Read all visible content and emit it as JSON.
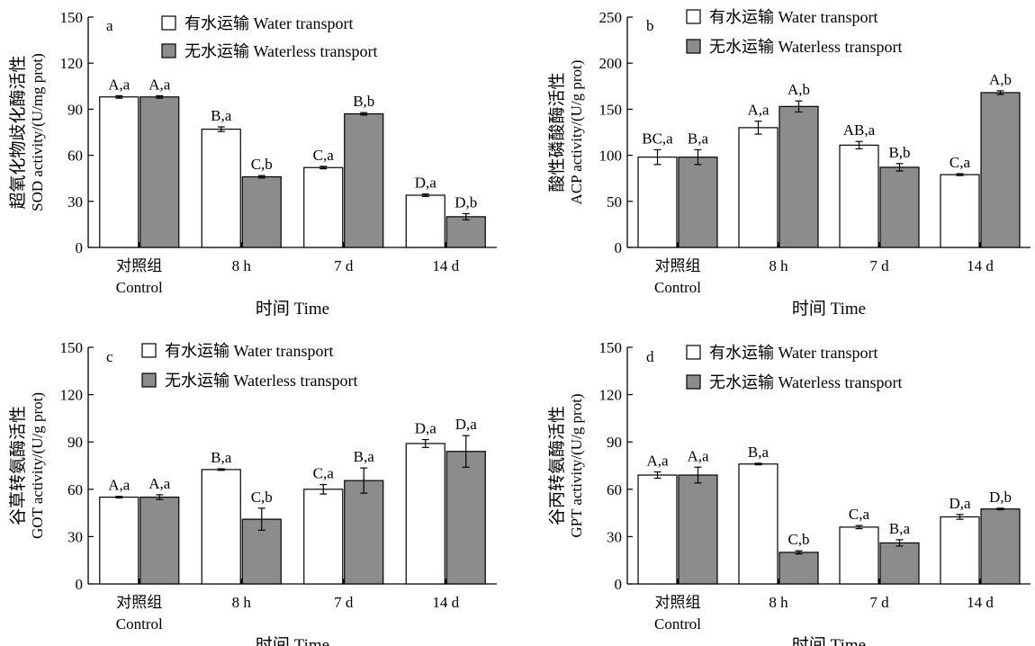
{
  "colors": {
    "water": "#ffffff",
    "waterless": "#8c8c8c",
    "stroke": "#000000"
  },
  "legend": {
    "water": "有水运输 Water transport",
    "waterless": "无水运输 Waterless transport"
  },
  "chart_data": [
    {
      "panel": "a",
      "type": "bar",
      "ylabel_cn": "超氧化物歧化酶活性",
      "ylabel_en": "SOD activity/(U/mg prot)",
      "xlabel": "时间 Time",
      "ylim": [
        0,
        150
      ],
      "yticks": [
        0,
        30,
        60,
        90,
        120,
        150
      ],
      "categories": [
        [
          "对照组",
          "Control"
        ],
        [
          "8 h"
        ],
        [
          "7 d"
        ],
        [
          "14 d"
        ]
      ],
      "series": [
        {
          "name": "有水运输 Water transport",
          "values": [
            98,
            77,
            52,
            34
          ],
          "errors": [
            0.8,
            1.5,
            0.8,
            0.8
          ],
          "labels": [
            "A,a",
            "B,a",
            "C,a",
            "D,a"
          ]
        },
        {
          "name": "无水运输 Waterless transport",
          "values": [
            98,
            46,
            87,
            20
          ],
          "errors": [
            0.8,
            0.8,
            0.8,
            2
          ],
          "labels": [
            "A,a",
            "C,b",
            "B,b",
            "D,b"
          ]
        }
      ]
    },
    {
      "panel": "b",
      "type": "bar",
      "ylabel_cn": "酸性磷酸酶活性",
      "ylabel_en": "ACP activity/(U/g prot)",
      "xlabel": "时间 Time",
      "ylim": [
        0,
        250
      ],
      "yticks": [
        0,
        50,
        100,
        150,
        200,
        250
      ],
      "categories": [
        [
          "对照组",
          "Control"
        ],
        [
          "8 h"
        ],
        [
          "7 d"
        ],
        [
          "14 d"
        ]
      ],
      "series": [
        {
          "name": "有水运输 Water transport",
          "values": [
            98,
            130,
            111,
            79
          ],
          "errors": [
            8,
            7,
            4,
            1
          ],
          "labels": [
            "BC,a",
            "A,a",
            "AB,a",
            "C,a"
          ]
        },
        {
          "name": "无水运输 Waterless transport",
          "values": [
            98,
            153,
            87,
            168
          ],
          "errors": [
            8,
            6,
            4,
            2
          ],
          "labels": [
            "B,a",
            "A,b",
            "B,b",
            "A,b"
          ]
        }
      ]
    },
    {
      "panel": "c",
      "type": "bar",
      "ylabel_cn": "谷草转氨酶活性",
      "ylabel_en": "GOT activity/(U/g prot)",
      "xlabel": "时间 Time",
      "ylim": [
        0,
        150
      ],
      "yticks": [
        0,
        30,
        60,
        90,
        120,
        150
      ],
      "categories": [
        [
          "对照组",
          "Control"
        ],
        [
          "8 h"
        ],
        [
          "7 d"
        ],
        [
          "14 d"
        ]
      ],
      "series": [
        {
          "name": "有水运输 Water transport",
          "values": [
            55,
            72.5,
            60,
            89
          ],
          "errors": [
            0.5,
            0.5,
            3,
            2.5
          ],
          "labels": [
            "A,a",
            "B,a",
            "C,a",
            "D,a"
          ]
        },
        {
          "name": "无水运输 Waterless transport",
          "values": [
            55,
            41,
            65.5,
            84
          ],
          "errors": [
            1.5,
            7,
            8,
            10
          ],
          "labels": [
            "A,a",
            "C,b",
            "B,a",
            "D,a"
          ]
        }
      ]
    },
    {
      "panel": "d",
      "type": "bar",
      "ylabel_cn": "谷丙转氨酶活性",
      "ylabel_en": "GPT activity/(U/g prot)",
      "xlabel": "时间 Time",
      "ylim": [
        0,
        150
      ],
      "yticks": [
        0,
        30,
        60,
        90,
        120,
        150
      ],
      "categories": [
        [
          "对照组",
          "Control"
        ],
        [
          "8 h"
        ],
        [
          "7 d"
        ],
        [
          "14 d"
        ]
      ],
      "series": [
        {
          "name": "有水运输 Water transport",
          "values": [
            69,
            76,
            36,
            42.5
          ],
          "errors": [
            2,
            0.5,
            1,
            1.5
          ],
          "labels": [
            "A,a",
            "B,a",
            "C,a",
            "D,a"
          ]
        },
        {
          "name": "无水运输 Waterless transport",
          "values": [
            69,
            20,
            26,
            47.5
          ],
          "errors": [
            5,
            1,
            2,
            0.5
          ],
          "labels": [
            "A,a",
            "C,b",
            "B,a",
            "D,b"
          ]
        }
      ]
    }
  ]
}
